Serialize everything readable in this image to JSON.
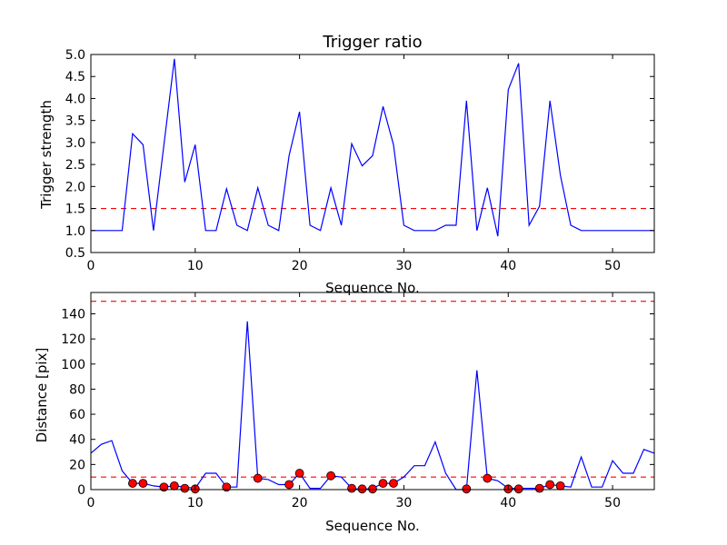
{
  "chart_data": [
    {
      "type": "line",
      "title": "Trigger ratio",
      "xlabel": "Sequence No.",
      "ylabel": "Trigger strength",
      "xlim": [
        0,
        54
      ],
      "ylim": [
        0.5,
        5.0
      ],
      "grid": false,
      "xticks": [
        0,
        10,
        20,
        30,
        40,
        50
      ],
      "yticks": [
        0.5,
        1.0,
        1.5,
        2.0,
        2.5,
        3.0,
        3.5,
        4.0,
        4.5,
        5.0
      ],
      "ytick_labels": [
        "0.5",
        "1.0",
        "1.5",
        "2.0",
        "2.5",
        "3.0",
        "3.5",
        "4.0",
        "4.5",
        "5.0"
      ],
      "line_color": "#0000ff",
      "threshold": 1.5,
      "threshold_color": "#ff0000",
      "series": [
        {
          "x": [
            0,
            1,
            2,
            3,
            4,
            5,
            6,
            7,
            8,
            9,
            10,
            11,
            12,
            13,
            14,
            15,
            16,
            17,
            18,
            19,
            20,
            21,
            22,
            23,
            24,
            25,
            26,
            27,
            28,
            29,
            30,
            31,
            32,
            33,
            34,
            35,
            36,
            37,
            38,
            39,
            40,
            41,
            42,
            43,
            44,
            45,
            46,
            47,
            48,
            49,
            50,
            51,
            52,
            53,
            54
          ],
          "y": [
            1.0,
            1.0,
            1.0,
            1.0,
            3.2,
            2.95,
            1.0,
            2.95,
            4.9,
            2.1,
            2.95,
            1.0,
            1.0,
            1.95,
            1.12,
            1.0,
            1.97,
            1.12,
            1.0,
            2.7,
            3.7,
            1.12,
            1.0,
            1.97,
            1.12,
            2.97,
            2.47,
            2.7,
            3.82,
            2.95,
            1.12,
            1.0,
            1.0,
            1.0,
            1.12,
            1.12,
            3.95,
            1.0,
            1.97,
            0.87,
            4.2,
            4.8,
            1.12,
            1.55,
            3.95,
            2.25,
            1.12,
            1.0,
            1.0,
            1.0,
            1.0,
            1.0,
            1.0,
            1.0,
            1.0
          ]
        }
      ]
    },
    {
      "type": "line",
      "title": "",
      "xlabel": "Sequence No.",
      "ylabel": "Distance [pix]",
      "xlim": [
        0,
        54
      ],
      "ylim": [
        0,
        157
      ],
      "grid": false,
      "xticks": [
        0,
        10,
        20,
        30,
        40,
        50
      ],
      "yticks": [
        0,
        20,
        40,
        60,
        80,
        100,
        120,
        140
      ],
      "ytick_labels": [
        "0",
        "20",
        "40",
        "60",
        "80",
        "100",
        "120",
        "140"
      ],
      "line_color": "#0000ff",
      "marker_color": "#ff0000",
      "thresholds": [
        150,
        10
      ],
      "threshold_color": "#ff0000",
      "series": [
        {
          "x": [
            0,
            1,
            2,
            3,
            4,
            5,
            6,
            7,
            8,
            9,
            10,
            11,
            12,
            13,
            14,
            15,
            16,
            17,
            18,
            19,
            20,
            21,
            22,
            23,
            24,
            25,
            26,
            27,
            28,
            29,
            30,
            31,
            32,
            33,
            34,
            35,
            36,
            37,
            38,
            39,
            40,
            41,
            42,
            43,
            44,
            45,
            46,
            47,
            48,
            49,
            50,
            51,
            52,
            53,
            54
          ],
          "y": [
            29,
            36,
            39,
            15,
            5,
            5,
            3,
            2,
            3,
            2,
            1,
            13,
            13,
            2,
            2,
            134,
            9,
            8,
            4,
            4,
            13,
            1,
            1,
            11,
            10,
            1,
            0,
            1,
            5,
            5,
            10,
            19,
            19,
            38,
            13,
            0,
            0,
            95,
            9,
            7,
            1,
            1,
            1,
            1,
            4,
            3,
            2,
            26,
            2,
            2,
            23,
            13,
            13,
            32,
            29
          ]
        }
      ],
      "markers": {
        "x": [
          4,
          5,
          7,
          8,
          9,
          10,
          13,
          16,
          19,
          20,
          23,
          25,
          26,
          27,
          28,
          29,
          36,
          38,
          40,
          41,
          43,
          44,
          45
        ],
        "y": [
          5,
          5,
          2,
          3,
          1,
          0.5,
          2,
          9,
          4,
          13,
          11,
          1,
          0.5,
          0.5,
          5,
          5,
          0.5,
          9,
          0.5,
          0.5,
          1,
          4,
          3
        ]
      }
    }
  ]
}
